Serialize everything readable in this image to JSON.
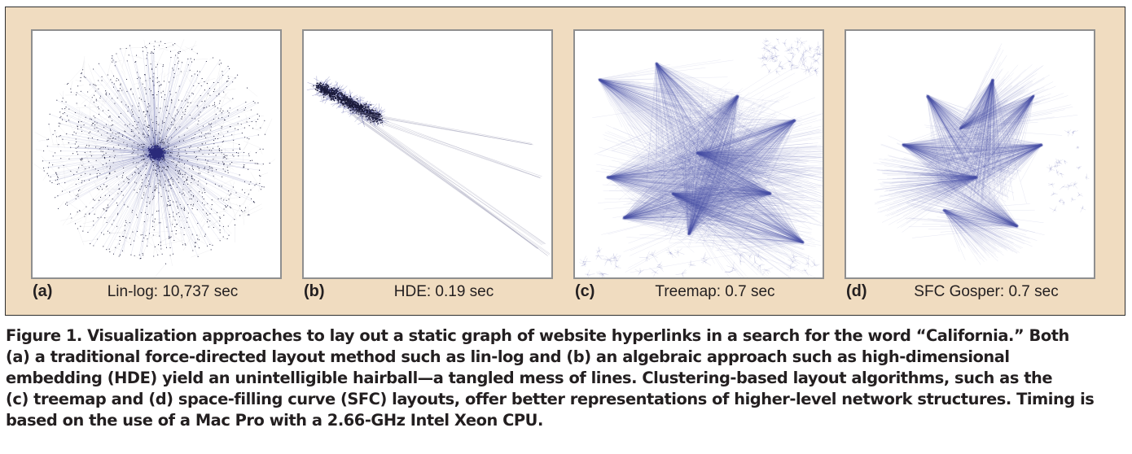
{
  "panels": [
    {
      "id": "a",
      "letter": "(a)",
      "caption": "Lin-log: 10,737 sec",
      "edge_color": "#4a4ea0"
    },
    {
      "id": "b",
      "letter": "(b)",
      "caption": "HDE: 0.19 sec",
      "edge_color": "#4a4ea0"
    },
    {
      "id": "c",
      "letter": "(c)",
      "caption": "Treemap: 0.7 sec",
      "edge_color": "#4f55ad"
    },
    {
      "id": "d",
      "letter": "(d)",
      "caption": "SFC Gosper: 0.7 sec",
      "edge_color": "#5055ac"
    }
  ],
  "caption": {
    "label": "Figure 1.",
    "lines": [
      " Visualization approaches to lay out a static graph of website hyperlinks in a search for the word “California.” Both",
      "(a) a traditional force-directed layout method such as lin-log and (b) an algebraic approach such as high-dimensional",
      "embedding (HDE) yield an unintelligible hairball—a tangled mess of lines. Clustering-based layout algorithms, such as the",
      "(c) treemap and (d) space-filling curve (SFC) layouts, offer better representations of higher-level network structures. Timing is",
      "based on the use of a Mac Pro with a 2.66-GHz Intel Xeon CPU."
    ]
  },
  "colors": {
    "frame_bg": "#f0dcc0",
    "node_dark": "#1a1a3a",
    "edge_blue": "#4a4ea0"
  }
}
